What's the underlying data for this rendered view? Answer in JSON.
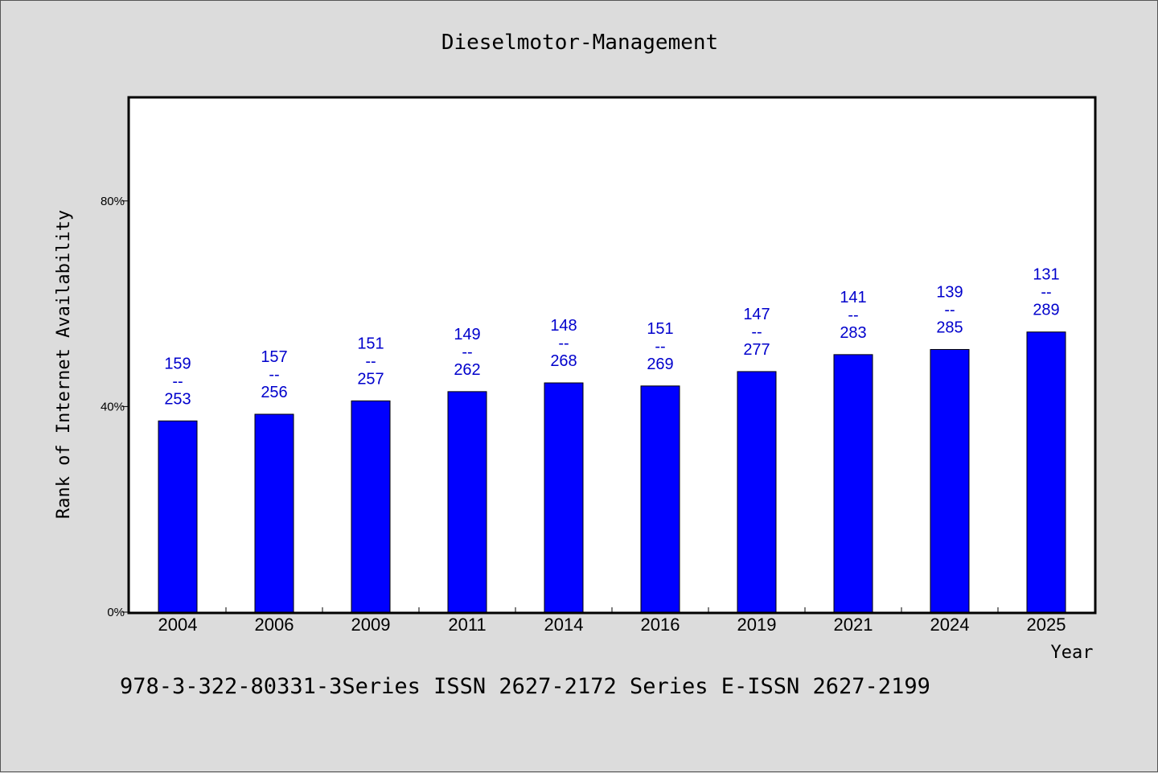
{
  "chart_data": {
    "type": "bar",
    "title": "Dieselmotor-Management",
    "xlabel": "Year",
    "ylabel": "Rank of Internet Availability",
    "categories": [
      "2004",
      "2006",
      "2009",
      "2011",
      "2014",
      "2016",
      "2019",
      "2021",
      "2024",
      "2025"
    ],
    "series": [
      {
        "values": [
          37.2,
          38.5,
          41.1,
          42.9,
          44.6,
          44.0,
          46.8,
          50.1,
          51.1,
          54.5
        ]
      }
    ],
    "data_labels": [
      [
        "159",
        "--",
        "253"
      ],
      [
        "157",
        "--",
        "256"
      ],
      [
        "151",
        "--",
        "257"
      ],
      [
        "149",
        "--",
        "262"
      ],
      [
        "148",
        "--",
        "268"
      ],
      [
        "151",
        "--",
        "269"
      ],
      [
        "147",
        "--",
        "277"
      ],
      [
        "141",
        "--",
        "283"
      ],
      [
        "139",
        "--",
        "285"
      ],
      [
        "131",
        "--",
        "289"
      ]
    ],
    "yticks": [
      {
        "value": 0,
        "label": "0%"
      },
      {
        "value": 40,
        "label": "40%"
      },
      {
        "value": 80,
        "label": "80%"
      }
    ],
    "ylim": [
      0,
      100
    ],
    "grid": false,
    "legend": "none",
    "bar_color": "#0000ff",
    "label_color": "#0000cc"
  },
  "footer": {
    "text": "978-3-322-80331-3Series ISSN 2627-2172 Series E-ISSN 2627-2199"
  }
}
